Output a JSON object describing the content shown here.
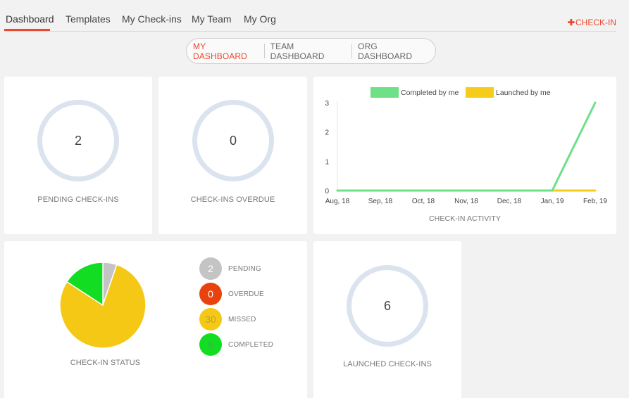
{
  "nav": {
    "tabs": [
      {
        "label": "Dashboard"
      },
      {
        "label": "Templates"
      },
      {
        "label": "My Check-ins"
      },
      {
        "label": "My Team"
      },
      {
        "label": "My Org"
      }
    ],
    "checkin_button": {
      "plus": "✚",
      "label": "CHECK-IN"
    }
  },
  "dashboard_switch": {
    "items": [
      {
        "label": "MY DASHBOARD",
        "active": true
      },
      {
        "label": "TEAM DASHBOARD",
        "active": false
      },
      {
        "label": "ORG DASHBOARD",
        "active": false
      }
    ]
  },
  "cards": {
    "pending": {
      "value": "2",
      "label": "PENDING CHECK-INS"
    },
    "overdue": {
      "value": "0",
      "label": "CHECK-INS OVERDUE"
    },
    "launched": {
      "value": "6",
      "label": "LAUNCHED CHECK-INS"
    }
  },
  "status": {
    "label": "CHECK-IN STATUS",
    "items": [
      {
        "value": "2",
        "label": "PENDING",
        "color": "#c4c4c4"
      },
      {
        "value": "0",
        "label": "OVERDUE",
        "color": "#e8420f"
      },
      {
        "value": "30",
        "label": "MISSED",
        "color": "#f4c815",
        "text_color": "#bfa33a"
      },
      {
        "value": "6",
        "label": "COMPLETED",
        "color": "#12dd22",
        "text_color": "#3fae3f"
      }
    ]
  },
  "colors": {
    "accent": "#e8492f",
    "ring": "#dbe3ee"
  },
  "chart_data": [
    {
      "type": "line",
      "title": "CHECK-IN ACTIVITY",
      "legend_position": "top",
      "x": [
        "Aug, 18",
        "Sep, 18",
        "Oct, 18",
        "Nov, 18",
        "Dec, 18",
        "Jan, 19",
        "Feb, 19"
      ],
      "series": [
        {
          "name": "Completed by me",
          "color": "#6ee086",
          "values": [
            0,
            0,
            0,
            0,
            0,
            0,
            3
          ]
        },
        {
          "name": "Launched by me",
          "color": "#f5cc19",
          "values": [
            0,
            0,
            0,
            0,
            0,
            0,
            0
          ]
        }
      ],
      "yticks": [
        0,
        1,
        2,
        3
      ],
      "ylim": [
        0,
        3
      ]
    },
    {
      "type": "pie",
      "title": "CHECK-IN STATUS",
      "categories": [
        "Pending",
        "Overdue",
        "Missed",
        "Completed"
      ],
      "values": [
        2,
        0,
        30,
        6
      ],
      "colors": [
        "#c4c4c4",
        "#e8420f",
        "#f4c815",
        "#12dd22"
      ]
    }
  ]
}
